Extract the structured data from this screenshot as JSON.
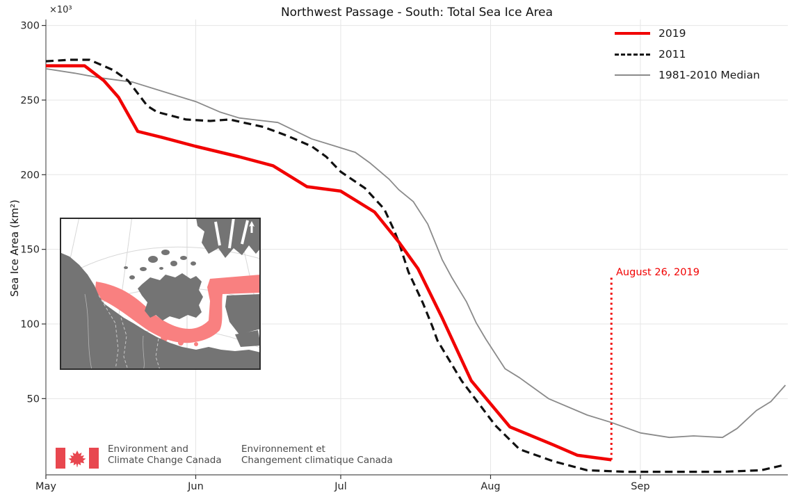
{
  "y_axis": {
    "offset_text": "×10³"
  },
  "footer": {
    "en": [
      "Environment and",
      "Climate Change Canada"
    ],
    "fr": [
      "Environnement et",
      "Changement climatique Canada"
    ]
  },
  "inset_map": {
    "description": "Polar stereographic map of the western Canadian Arctic with the Northwest Passage southern route highlighted in red"
  },
  "colors": {
    "line_2019": "#f10000",
    "line_2011": "#111111",
    "line_median": "#8a8a8a",
    "annotation": "#f10000",
    "grid": "#e6e6e6",
    "spine": "#6e6e6e",
    "tick": "#333333",
    "tick_label": "#262626",
    "map_land": "#747474",
    "map_route": "#f98080",
    "map_graticule": "#d7d7d7",
    "flag_red": "#e8474f",
    "footer_text": "#4a4a4a"
  },
  "chart_data": {
    "type": "line",
    "title": "Northwest Passage - South: Total Sea Ice Area",
    "ylabel": "Sea Ice Area (km²)",
    "y_scale_note": "values ×10³ km²",
    "x_unit": "days since May 1",
    "xlim": [
      0,
      153.5
    ],
    "ylim": [
      -2,
      305
    ],
    "grid": true,
    "legend_position": "upper right",
    "x_ticks": [
      {
        "label": "May",
        "day": 0
      },
      {
        "label": "Jun",
        "day": 31
      },
      {
        "label": "Jul",
        "day": 61
      },
      {
        "label": "Aug",
        "day": 92
      },
      {
        "label": "Sep",
        "day": 123
      }
    ],
    "y_ticks": [
      50,
      100,
      150,
      200,
      250,
      300
    ],
    "series": [
      {
        "name": "2019",
        "color": "#f10000",
        "style": "solid",
        "points": [
          [
            0,
            273
          ],
          [
            4,
            273
          ],
          [
            8,
            273
          ],
          [
            12,
            263
          ],
          [
            15,
            252
          ],
          [
            19,
            229
          ],
          [
            24,
            225
          ],
          [
            31,
            219
          ],
          [
            40,
            212
          ],
          [
            47,
            206
          ],
          [
            54,
            192
          ],
          [
            61,
            189
          ],
          [
            68,
            175
          ],
          [
            73,
            155
          ],
          [
            77,
            137
          ],
          [
            82,
            104
          ],
          [
            88,
            62
          ],
          [
            96,
            31
          ],
          [
            105,
            19
          ],
          [
            110,
            12
          ],
          [
            117,
            9
          ]
        ]
      },
      {
        "name": "2011",
        "color": "#111111",
        "style": "dashed",
        "points": [
          [
            0,
            276
          ],
          [
            5,
            277
          ],
          [
            9,
            277
          ],
          [
            14,
            270
          ],
          [
            17,
            263
          ],
          [
            21,
            246
          ],
          [
            23,
            242
          ],
          [
            29,
            237
          ],
          [
            34,
            236
          ],
          [
            38,
            237
          ],
          [
            45,
            232
          ],
          [
            50,
            226
          ],
          [
            55,
            219
          ],
          [
            58,
            212
          ],
          [
            61,
            202
          ],
          [
            66,
            191
          ],
          [
            70,
            177
          ],
          [
            72,
            163
          ],
          [
            73,
            155
          ],
          [
            75,
            135
          ],
          [
            78,
            114
          ],
          [
            80,
            98
          ],
          [
            81,
            89
          ],
          [
            86,
            62
          ],
          [
            93,
            32
          ],
          [
            98,
            16
          ],
          [
            105,
            8
          ],
          [
            112,
            2
          ],
          [
            120,
            1
          ],
          [
            130,
            1
          ],
          [
            140,
            1
          ],
          [
            148,
            2
          ],
          [
            152,
            5
          ],
          [
            153,
            6
          ]
        ]
      },
      {
        "name": "1981-2010 Median",
        "color": "#8a8a8a",
        "style": "solid",
        "points": [
          [
            0,
            271
          ],
          [
            6,
            268
          ],
          [
            11,
            265
          ],
          [
            18,
            262
          ],
          [
            26,
            254
          ],
          [
            31,
            249
          ],
          [
            36,
            242
          ],
          [
            40,
            238
          ],
          [
            48,
            235
          ],
          [
            55,
            224
          ],
          [
            60,
            219
          ],
          [
            64,
            215
          ],
          [
            67,
            208
          ],
          [
            71,
            197
          ],
          [
            73,
            190
          ],
          [
            76,
            182
          ],
          [
            79,
            167
          ],
          [
            82,
            143
          ],
          [
            84,
            131
          ],
          [
            87,
            115
          ],
          [
            89,
            101
          ],
          [
            91,
            90
          ],
          [
            95,
            70
          ],
          [
            98,
            64
          ],
          [
            104,
            50
          ],
          [
            112,
            39
          ],
          [
            117,
            34
          ],
          [
            123,
            27
          ],
          [
            129,
            24
          ],
          [
            134,
            25
          ],
          [
            140,
            24
          ],
          [
            143,
            30
          ],
          [
            147,
            42
          ],
          [
            150,
            48
          ],
          [
            153,
            59
          ]
        ]
      }
    ],
    "annotation": {
      "text": "August 26, 2019",
      "x_day": 117,
      "line_top_value": 131,
      "line_bottom_value": 9
    }
  }
}
